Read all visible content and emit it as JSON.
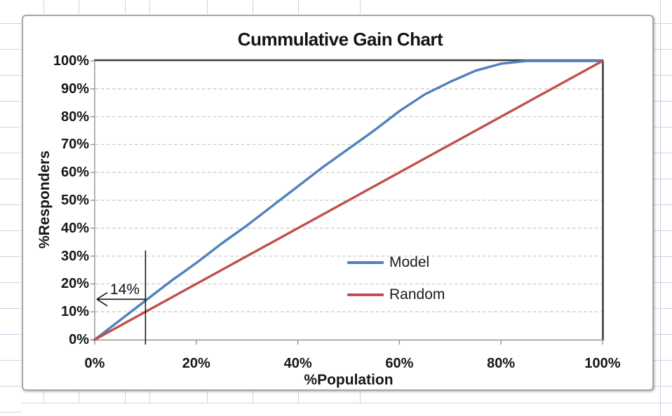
{
  "chart_data": {
    "type": "line",
    "title": "Cummulative Gain Chart",
    "xlabel": "%Population",
    "ylabel": "%Responders",
    "xlim": [
      0,
      100
    ],
    "ylim": [
      0,
      100
    ],
    "x_tick_labels": [
      "0%",
      "20%",
      "40%",
      "60%",
      "80%",
      "100%"
    ],
    "y_tick_labels": [
      "0%",
      "10%",
      "20%",
      "30%",
      "40%",
      "50%",
      "60%",
      "70%",
      "80%",
      "90%",
      "100%"
    ],
    "grid": "horizontal dashed major gridlines",
    "legend_position": "inside plot, center-right",
    "series": [
      {
        "name": "Model",
        "color": "#4F81BD",
        "x": [
          0,
          5,
          10,
          15,
          20,
          25,
          30,
          35,
          40,
          45,
          50,
          55,
          60,
          65,
          70,
          75,
          80,
          85,
          90,
          95,
          100
        ],
        "values": [
          0,
          7,
          14,
          21,
          27.5,
          34.5,
          41,
          48,
          55,
          62,
          68.5,
          75,
          82,
          88,
          92.5,
          96.5,
          99,
          100,
          100,
          100,
          100
        ]
      },
      {
        "name": "Random",
        "color": "#C0504D",
        "x": [
          0,
          100
        ],
        "values": [
          0,
          100
        ]
      }
    ],
    "annotation": {
      "label": "14%",
      "meaning": "Model captures 14% of responders at 10% of population",
      "x_pct": 10,
      "arrow_y_pct": 14.5,
      "vline_top_pct": 32
    }
  }
}
